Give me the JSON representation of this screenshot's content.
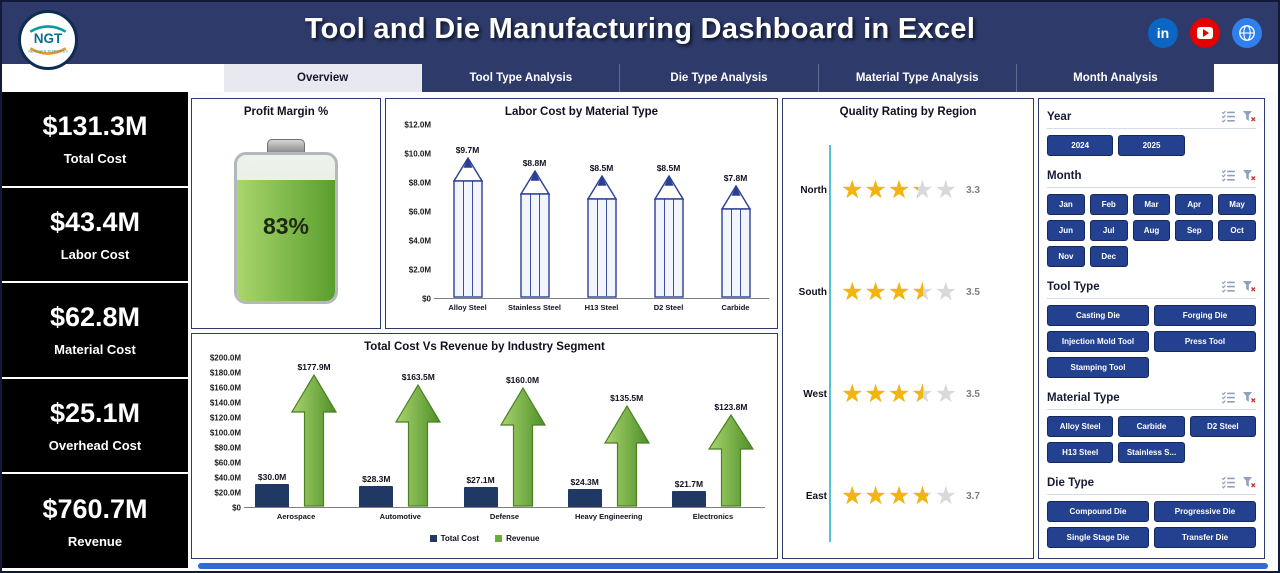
{
  "colors": {
    "header_navy": "#2d3a6a",
    "slicer_blue": "#24418f",
    "bar_navy": "#1f3864",
    "arrow_green": "#6aab3c",
    "star_gold": "#f2b50d",
    "battery_green": "#76b82a",
    "quality_axis_teal": "#55c0d2"
  },
  "header": {
    "title": "Tool and Die Manufacturing Dashboard in Excel",
    "logo": {
      "text": "NGT",
      "subtext": "NEXT GEN TEMPLATES"
    },
    "social": [
      {
        "name": "linkedin",
        "label": "in"
      },
      {
        "name": "youtube",
        "label": ""
      },
      {
        "name": "web",
        "label": ""
      }
    ]
  },
  "tabs": [
    {
      "label": "Overview",
      "active": true
    },
    {
      "label": "Tool Type Analysis",
      "active": false
    },
    {
      "label": "Die Type Analysis",
      "active": false
    },
    {
      "label": "Material Type Analysis",
      "active": false
    },
    {
      "label": "Month Analysis",
      "active": false
    }
  ],
  "kpis": [
    {
      "value": "$131.3M",
      "label": "Total Cost"
    },
    {
      "value": "$43.4M",
      "label": "Labor Cost"
    },
    {
      "value": "$62.8M",
      "label": "Material Cost"
    },
    {
      "value": "$25.1M",
      "label": "Overhead Cost"
    },
    {
      "value": "$760.7M",
      "label": "Revenue"
    }
  ],
  "profit_margin": {
    "title": "Profit Margin %",
    "value": "83%",
    "percent": 83
  },
  "chart_data": [
    {
      "type": "bar",
      "title": "Labor Cost by Material Type",
      "categories": [
        "Alloy Steel",
        "Stainless Steel",
        "H13 Steel",
        "D2 Steel",
        "Carbide"
      ],
      "values": [
        9.7,
        8.8,
        8.5,
        8.5,
        7.8
      ],
      "data_labels": [
        "$9.7M",
        "$8.8M",
        "$8.5M",
        "$8.5M",
        "$7.8M"
      ],
      "ylim": [
        0,
        12
      ],
      "yticks": [
        "$12.0M",
        "$10.0M",
        "$8.0M",
        "$6.0M",
        "$4.0M",
        "$2.0M",
        "$0"
      ],
      "bar_style": "pencil"
    },
    {
      "type": "bar",
      "title": "Total Cost Vs Revenue by Industry Segment",
      "categories": [
        "Aerospace",
        "Automotive",
        "Defense",
        "Heavy Engineering",
        "Electronics"
      ],
      "series": [
        {
          "name": "Total Cost",
          "color": "#1f3864",
          "values": [
            30.0,
            28.3,
            27.1,
            24.3,
            21.7
          ],
          "labels": [
            "$30.0M",
            "$28.3M",
            "$27.1M",
            "$24.3M",
            "$21.7M"
          ]
        },
        {
          "name": "Revenue",
          "color": "#6aab3c",
          "values": [
            177.9,
            163.5,
            160.0,
            135.5,
            123.8
          ],
          "labels": [
            "$177.9M",
            "$163.5M",
            "$160.0M",
            "$135.5M",
            "$123.8M"
          ]
        }
      ],
      "ylim": [
        0,
        200
      ],
      "yticks": [
        "$200.0M",
        "$180.0M",
        "$160.0M",
        "$140.0M",
        "$120.0M",
        "$100.0M",
        "$80.0M",
        "$60.0M",
        "$40.0M",
        "$20.0M",
        "$0"
      ],
      "legend_position": "bottom"
    },
    {
      "type": "rating",
      "title": "Quality Rating by Region",
      "categories": [
        "North",
        "South",
        "West",
        "East"
      ],
      "values": [
        3.3,
        3.5,
        3.5,
        3.7
      ],
      "max": 5
    }
  ],
  "slicers": [
    {
      "id": "year",
      "title": "Year",
      "items": [
        "2024",
        "2025"
      ]
    },
    {
      "id": "month",
      "title": "Month",
      "items": [
        "Jan",
        "Feb",
        "Mar",
        "Apr",
        "May",
        "Jun",
        "Jul",
        "Aug",
        "Sep",
        "Oct",
        "Nov",
        "Dec"
      ]
    },
    {
      "id": "tool-type",
      "title": "Tool Type",
      "items": [
        "Casting Die",
        "Forging Die",
        "Injection Mold Tool",
        "Press Tool",
        "Stamping Tool"
      ]
    },
    {
      "id": "material-type",
      "title": "Material Type",
      "items": [
        "Alloy Steel",
        "Carbide",
        "D2 Steel",
        "H13 Steel",
        "Stainless S..."
      ]
    },
    {
      "id": "die-type",
      "title": "Die Type",
      "items": [
        "Compound Die",
        "Progressive Die",
        "Single Stage Die",
        "Transfer Die"
      ]
    }
  ]
}
